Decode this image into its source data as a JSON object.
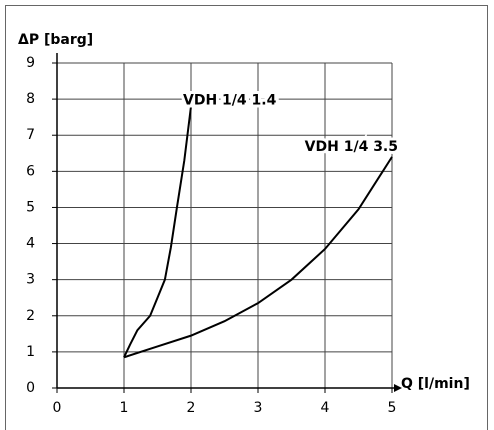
{
  "chart_data": {
    "type": "line",
    "y_label": "ΔP [barg]",
    "x_label": "Q [l/min]",
    "xlim": [
      0,
      5
    ],
    "xticks": [
      0,
      1,
      2,
      3,
      4,
      5
    ],
    "ylim": [
      0,
      9
    ],
    "yticks": [
      0,
      1,
      2,
      3,
      4,
      5,
      6,
      7,
      8,
      9
    ],
    "grid": true,
    "series": [
      {
        "name": "VDH 1/4 1.4",
        "color": "#000000",
        "x": [
          1,
          1.09,
          1.2,
          1.39,
          1.5,
          1.61,
          1.7,
          1.79,
          1.9,
          2
        ],
        "values": [
          0.85,
          1.2,
          1.6,
          2,
          2.5,
          3,
          3.9,
          5,
          6.3,
          7.8
        ]
      },
      {
        "name": "VDH 1/4 3.5",
        "color": "#000000",
        "x": [
          1,
          1.5,
          2,
          2.5,
          3,
          3.5,
          4,
          4.5,
          5
        ],
        "values": [
          0.85,
          1.15,
          1.45,
          1.85,
          2.35,
          3,
          3.85,
          4.95,
          6.4
        ]
      }
    ]
  }
}
